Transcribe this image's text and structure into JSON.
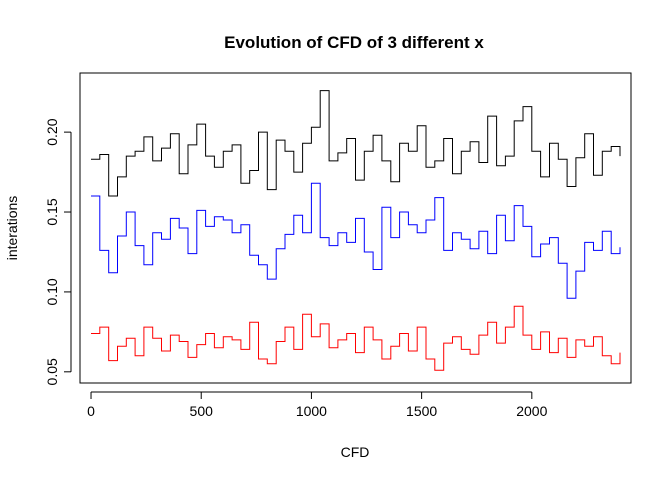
{
  "chart_data": {
    "type": "line",
    "title": "Evolution of CFD of 3 different x",
    "xlabel": "CFD",
    "ylabel": "interations",
    "xlim": [
      -50,
      2450
    ],
    "ylim": [
      0.043,
      0.237
    ],
    "x_ticks": [
      0,
      500,
      1000,
      1500,
      2000
    ],
    "x_tick_labels": [
      "0",
      "500",
      "1000",
      "1500",
      "2000"
    ],
    "y_ticks": [
      0.05,
      0.1,
      0.15,
      0.2
    ],
    "y_tick_labels": [
      "0.05",
      "0.10",
      "0.15",
      "0.20"
    ],
    "grid": false,
    "legend": "none",
    "x": [
      0,
      40,
      80,
      120,
      160,
      200,
      240,
      280,
      320,
      360,
      400,
      440,
      480,
      520,
      560,
      600,
      640,
      680,
      720,
      760,
      800,
      840,
      880,
      920,
      960,
      1000,
      1040,
      1080,
      1120,
      1160,
      1200,
      1240,
      1280,
      1320,
      1360,
      1400,
      1440,
      1480,
      1520,
      1560,
      1600,
      1640,
      1680,
      1720,
      1760,
      1800,
      1840,
      1880,
      1920,
      1960,
      2000,
      2040,
      2080,
      2120,
      2160,
      2200,
      2240,
      2280,
      2320,
      2360,
      2400
    ],
    "series": [
      {
        "color": "#000000",
        "values": [
          0.183,
          0.186,
          0.16,
          0.172,
          0.185,
          0.188,
          0.197,
          0.182,
          0.19,
          0.199,
          0.174,
          0.192,
          0.205,
          0.185,
          0.178,
          0.188,
          0.192,
          0.168,
          0.176,
          0.2,
          0.164,
          0.195,
          0.188,
          0.175,
          0.193,
          0.203,
          0.226,
          0.182,
          0.187,
          0.196,
          0.17,
          0.188,
          0.198,
          0.182,
          0.169,
          0.193,
          0.188,
          0.204,
          0.178,
          0.182,
          0.196,
          0.174,
          0.188,
          0.194,
          0.181,
          0.21,
          0.179,
          0.185,
          0.207,
          0.216,
          0.188,
          0.172,
          0.193,
          0.183,
          0.166,
          0.184,
          0.199,
          0.173,
          0.188,
          0.191,
          0.185
        ]
      },
      {
        "color": "#0000ff",
        "values": [
          0.16,
          0.126,
          0.112,
          0.135,
          0.15,
          0.129,
          0.117,
          0.137,
          0.133,
          0.146,
          0.14,
          0.124,
          0.151,
          0.141,
          0.147,
          0.145,
          0.137,
          0.142,
          0.123,
          0.117,
          0.108,
          0.127,
          0.136,
          0.148,
          0.137,
          0.168,
          0.134,
          0.129,
          0.137,
          0.131,
          0.146,
          0.125,
          0.114,
          0.153,
          0.134,
          0.15,
          0.142,
          0.137,
          0.145,
          0.159,
          0.126,
          0.137,
          0.133,
          0.127,
          0.138,
          0.124,
          0.148,
          0.132,
          0.154,
          0.141,
          0.122,
          0.13,
          0.134,
          0.118,
          0.096,
          0.113,
          0.131,
          0.126,
          0.138,
          0.124,
          0.128
        ]
      },
      {
        "color": "#ff0000",
        "values": [
          0.074,
          0.078,
          0.057,
          0.066,
          0.071,
          0.06,
          0.078,
          0.071,
          0.063,
          0.073,
          0.069,
          0.059,
          0.067,
          0.074,
          0.065,
          0.072,
          0.07,
          0.064,
          0.081,
          0.058,
          0.055,
          0.069,
          0.078,
          0.064,
          0.086,
          0.072,
          0.08,
          0.065,
          0.07,
          0.074,
          0.062,
          0.078,
          0.07,
          0.058,
          0.066,
          0.074,
          0.063,
          0.078,
          0.058,
          0.051,
          0.068,
          0.072,
          0.064,
          0.061,
          0.073,
          0.081,
          0.068,
          0.078,
          0.091,
          0.073,
          0.064,
          0.075,
          0.062,
          0.071,
          0.059,
          0.07,
          0.066,
          0.072,
          0.06,
          0.055,
          0.062
        ]
      }
    ]
  }
}
